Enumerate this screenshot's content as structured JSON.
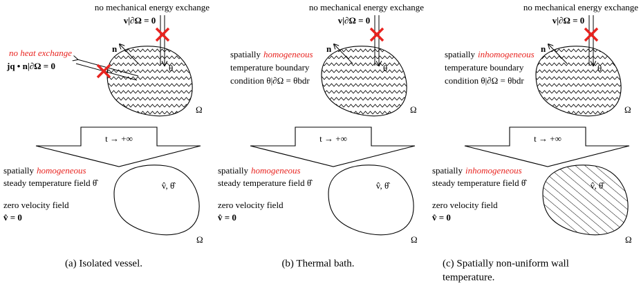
{
  "panels": [
    {
      "top_note": "no mechanical energy exchange",
      "top_condition": "v|∂Ω = 0",
      "normal": "n",
      "theta": "θ",
      "omega": "Ω",
      "side_note": "no heat exchange",
      "side_lines": [
        "jq • n|∂Ω = 0"
      ],
      "arrow_label": "t → +∞",
      "bottom_first": "spatially",
      "bottom_emphasis": "homogeneous",
      "bottom_lines": [
        "steady temperature field θ̂"
      ],
      "velocity_lines": [
        "zero velocity field",
        "v̂ = 0"
      ],
      "interior_label": "v̂, θ̂",
      "bottom_omega": "Ω",
      "caption": [
        "(a) Isolated vessel."
      ]
    },
    {
      "top_note": "no mechanical energy exchange",
      "top_condition": "v|∂Ω = 0",
      "normal": "n",
      "theta": "θ",
      "omega": "Ω",
      "side_first": "spatially",
      "side_emphasis": "homogeneous",
      "side_lines": [
        "temperature boundary",
        "condition θ|∂Ω = θbdr"
      ],
      "arrow_label": "t → +∞",
      "bottom_first": "spatially",
      "bottom_emphasis": "homogeneous",
      "bottom_lines": [
        "steady temperature field θ̂"
      ],
      "velocity_lines": [
        "zero velocity field",
        "v̂ = 0"
      ],
      "interior_label": "v̂, θ̂",
      "bottom_omega": "Ω",
      "caption": [
        "(b) Thermal bath."
      ]
    },
    {
      "top_note": "no mechanical energy exchange",
      "top_condition": "v|∂Ω = 0",
      "normal": "n",
      "theta": "θ",
      "omega": "Ω",
      "side_first": "spatially",
      "side_emphasis": "inhomogeneous",
      "side_lines": [
        "temperature boundary",
        "condition θ|∂Ω = θbdr"
      ],
      "arrow_label": "t → +∞",
      "bottom_first": "spatially",
      "bottom_emphasis": "inhomogeneous",
      "bottom_lines": [
        "steady temperature field θ̂"
      ],
      "velocity_lines": [
        "zero velocity field",
        "v̂ = 0"
      ],
      "interior_label": "v̂, θ̂",
      "bottom_omega": "Ω",
      "caption": [
        "(c) Spatially non-uniform wall",
        "temperature."
      ],
      "hatched": true
    }
  ]
}
